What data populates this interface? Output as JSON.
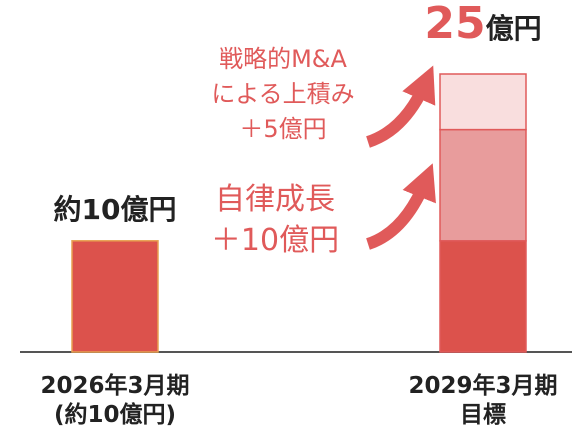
{
  "chart_data": {
    "type": "stacked_bar",
    "categories": [
      "2026年3月期\n(約10億円)",
      "2029年3月期\n目標"
    ],
    "series": [
      {
        "color": "#dc524c",
        "values": [
          10,
          10
        ]
      },
      {
        "color": "#e89c9c",
        "values": [
          null,
          10
        ]
      },
      {
        "color": "#f9dede",
        "values": [
          null,
          5
        ]
      }
    ],
    "totals": [
      10,
      25
    ],
    "total_labels": [
      "約10億円",
      "25億円"
    ],
    "annotations": [
      "戦略的M&A\nによる上積み\n＋5億円",
      "自律成長\n＋10億円"
    ],
    "annotation_color": "#e05a5a"
  }
}
